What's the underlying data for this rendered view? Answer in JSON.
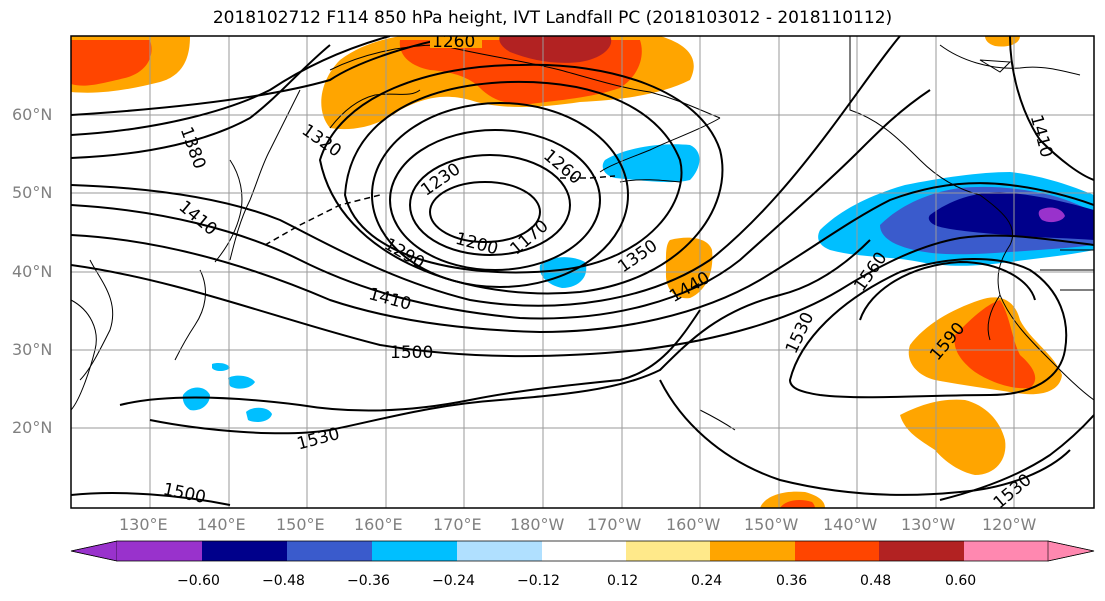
{
  "title": "2018102712 F114 850 hPa height, IVT Landfall PC (2018103012 - 2018110112)",
  "latitude_labels": [
    "60°N",
    "50°N",
    "40°N",
    "30°N",
    "20°N"
  ],
  "longitude_labels": [
    "130°E",
    "140°E",
    "150°E",
    "160°E",
    "170°E",
    "180°W",
    "170°W",
    "160°W",
    "150°W",
    "140°W",
    "130°W",
    "120°W"
  ],
  "contour_labels": [
    "1260",
    "1380",
    "1320",
    "1230",
    "1260",
    "1410",
    "1200",
    "1170",
    "1290",
    "1350",
    "1410",
    "1440",
    "1560",
    "1500",
    "1530",
    "1590",
    "1530",
    "1500",
    "1530",
    "1410"
  ],
  "colorbar": {
    "ticks": [
      "−0.60",
      "−0.48",
      "−0.36",
      "−0.24",
      "−0.12",
      "0.12",
      "0.24",
      "0.36",
      "0.48",
      "0.60"
    ],
    "colors": [
      "#9932cc",
      "#00008b",
      "#3a5bcc",
      "#00bfff",
      "#b0e0ff",
      "#ffffff",
      "#ffe98a",
      "#ffa500",
      "#ff4500",
      "#b22222",
      "#ff88b0"
    ]
  }
}
